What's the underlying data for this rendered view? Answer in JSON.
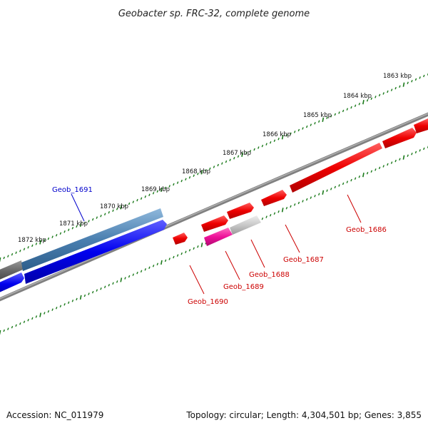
{
  "title": "Geobacter sp. FRC-32, complete genome",
  "footer": {
    "accession": "Accession: NC_011979",
    "summary": "Topology: circular; Length: 4,304,501 bp; Genes: 3,855"
  },
  "kbp_labels": [
    "1863 kbp",
    "1864 kbp",
    "1865 kbp",
    "1866 kbp",
    "1867 kbp",
    "1868 kbp",
    "1869 kbp",
    "1870 kbp",
    "1871 kbp",
    "1872 kbp"
  ],
  "gene_labels": {
    "geob_1686": "Geob_1686",
    "geob_1687": "Geob_1687",
    "geob_1688": "Geob_1688",
    "geob_1689": "Geob_1689",
    "geob_1690": "Geob_1690",
    "geob_1691": "Geob_1691"
  },
  "colors": {
    "backbone": "#808080",
    "tick": "#1a7a1a",
    "gene_red": "#ee0000",
    "gene_blue": "#0000ee",
    "gene_steelblue": "#4a7fb0",
    "gene_magenta": "#ee1199",
    "gene_gray": "#c8c8c8",
    "gene_darkgray": "#666666"
  }
}
